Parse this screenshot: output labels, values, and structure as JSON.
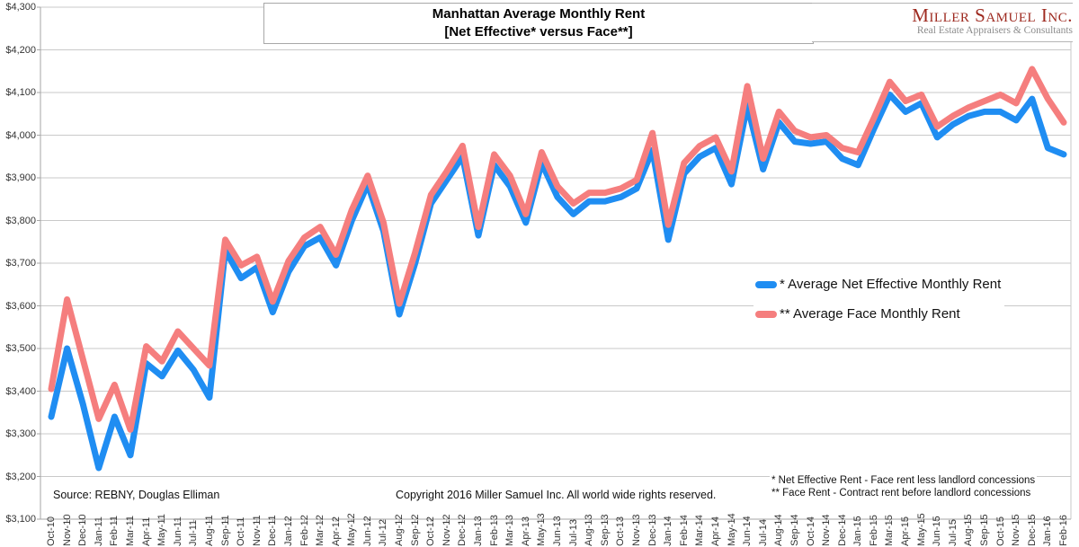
{
  "title": {
    "line1": "Manhattan Average Monthly Rent",
    "line2": "[Net Effective* versus Face**]"
  },
  "logo": {
    "name": "Miller Samuel Inc.",
    "tagline": "Real Estate Appraisers & Consultants"
  },
  "legend": {
    "net_effective_label": "* Average Net Effective Monthly Rent",
    "face_label": "** Average Face Monthly Rent"
  },
  "footer": {
    "source": "Source: REBNY, Douglas Elliman",
    "copyright": "Copyright 2016 Miller Samuel Inc.  All world wide rights reserved.",
    "footnote_net_effective": "* Net Effective Rent - Face rent less landlord concessions",
    "footnote_face": "** Face Rent - Contract rent before landlord concessions"
  },
  "colors": {
    "net_effective": "#1f8df2",
    "face": "#f57e7e",
    "gridline": "#c9c9c9",
    "axis": "#a6a6a6",
    "logo_red": "#9e2a20"
  },
  "chart_data": {
    "type": "line",
    "title": "Manhattan Average Monthly Rent [Net Effective* versus Face**]",
    "x": [
      "Oct-10",
      "Nov-10",
      "Dec-10",
      "Jan-11",
      "Feb-11",
      "Mar-11",
      "Apr-11",
      "May-11",
      "Jun-11",
      "Jul-11",
      "Aug-11",
      "Sep-11",
      "Oct-11",
      "Nov-11",
      "Dec-11",
      "Jan-12",
      "Feb-12",
      "Mar-12",
      "Apr-12",
      "May-12",
      "Jun-12",
      "Jul-12",
      "Aug-12",
      "Sep-12",
      "Oct-12",
      "Nov-12",
      "Dec-12",
      "Jan-13",
      "Feb-13",
      "Mar-13",
      "Apr-13",
      "May-13",
      "Jun-13",
      "Jul-13",
      "Aug-13",
      "Sep-13",
      "Oct-13",
      "Nov-13",
      "Dec-13",
      "Jan-14",
      "Feb-14",
      "Mar-14",
      "Apr-14",
      "May-14",
      "Jun-14",
      "Jul-14",
      "Aug-14",
      "Sep-14",
      "Oct-14",
      "Nov-14",
      "Dec-14",
      "Jan-15",
      "Feb-15",
      "Mar-15",
      "Apr-15",
      "May-15",
      "Jun-15",
      "Jul-15",
      "Aug-15",
      "Sep-15",
      "Oct-15",
      "Nov-15",
      "Dec-15",
      "Jan-16",
      "Feb-16"
    ],
    "series": [
      {
        "name": "Average Net Effective Monthly Rent",
        "color": "#1f8df2",
        "values": [
          3340,
          3500,
          3370,
          3220,
          3340,
          3250,
          3465,
          3435,
          3495,
          3450,
          3385,
          3730,
          3665,
          3690,
          3585,
          3680,
          3740,
          3760,
          3695,
          3800,
          3885,
          3775,
          3580,
          3700,
          3840,
          3895,
          3950,
          3765,
          3930,
          3880,
          3795,
          3935,
          3855,
          3815,
          3845,
          3845,
          3855,
          3875,
          3965,
          3755,
          3910,
          3950,
          3970,
          3885,
          4070,
          3920,
          4030,
          3985,
          3980,
          3985,
          3945,
          3930,
          4015,
          4095,
          4055,
          4075,
          3995,
          4025,
          4045,
          4055,
          4055,
          4035,
          4085,
          3970,
          3955
        ]
      },
      {
        "name": "Average Face Monthly Rent",
        "color": "#f57e7e",
        "values": [
          3405,
          3615,
          3475,
          3335,
          3415,
          3310,
          3505,
          3470,
          3540,
          3500,
          3460,
          3755,
          3695,
          3715,
          3610,
          3705,
          3760,
          3785,
          3720,
          3825,
          3905,
          3795,
          3605,
          3725,
          3860,
          3915,
          3975,
          3785,
          3955,
          3905,
          3815,
          3960,
          3880,
          3840,
          3865,
          3865,
          3875,
          3895,
          4005,
          3790,
          3935,
          3975,
          3995,
          3915,
          4115,
          3945,
          4055,
          4010,
          3995,
          4000,
          3970,
          3960,
          4040,
          4125,
          4080,
          4095,
          4020,
          4045,
          4065,
          4080,
          4095,
          4075,
          4155,
          4085,
          4030
        ]
      }
    ],
    "ylim": [
      3100,
      4300
    ],
    "ytick_interval": 100,
    "ytick_labels": [
      "$3,100",
      "$3,200",
      "$3,300",
      "$3,400",
      "$3,500",
      "$3,600",
      "$3,700",
      "$3,800",
      "$3,900",
      "$4,000",
      "$4,100",
      "$4,200",
      "$4,300"
    ],
    "grid": true,
    "legend_position": "middle-right"
  }
}
